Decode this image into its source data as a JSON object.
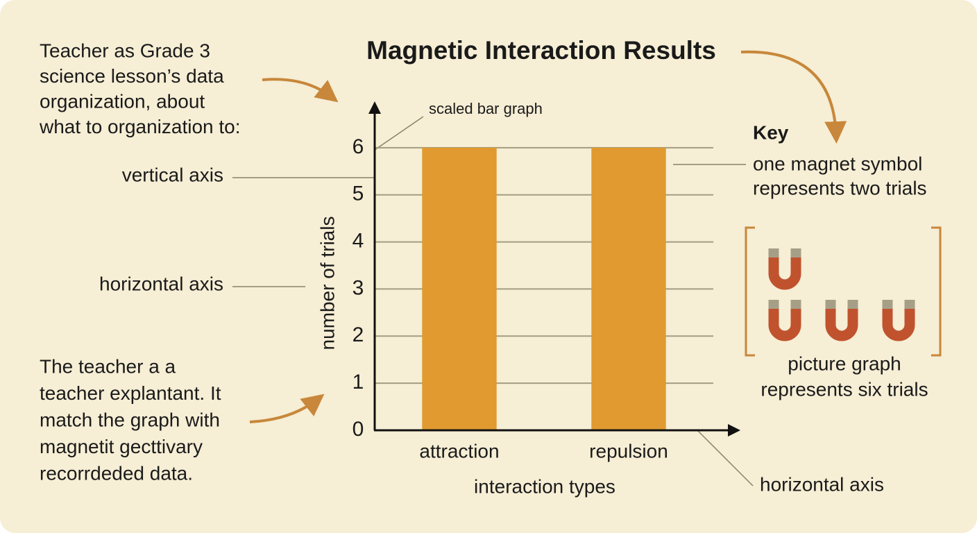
{
  "chart_data": {
    "type": "bar",
    "title": "Magnetic Interaction Results",
    "categories": [
      "attraction",
      "repulsion"
    ],
    "values": [
      6,
      6
    ],
    "color": "#e09a30",
    "ylim": [
      0,
      7
    ],
    "yticks": [
      0,
      1,
      2,
      3,
      4,
      5,
      6
    ],
    "grid": true,
    "x_label": "interaction types",
    "y_label": "number of trials",
    "annotations": {
      "intro": [
        "Teacher as Grade 3",
        "science lesson’s data",
        "organization, about",
        "what to organization to:"
      ],
      "vertical_axis": "vertical axis",
      "horizontal_axis_left": "horizontal axis",
      "explanation": [
        "The teacher a a",
        "teacher explantant. It",
        "match the graph with",
        "magnetit gecttivary",
        "recorrdeded data."
      ],
      "scaled_bar_graph": "scaled bar graph",
      "horizontal_axis_right": "horizontal axis"
    },
    "key": {
      "title": "Key",
      "lines": [
        "one magnet symbol",
        "represents two trials"
      ],
      "picture_graph": [
        "picture graph",
        "represents six trials"
      ]
    }
  }
}
